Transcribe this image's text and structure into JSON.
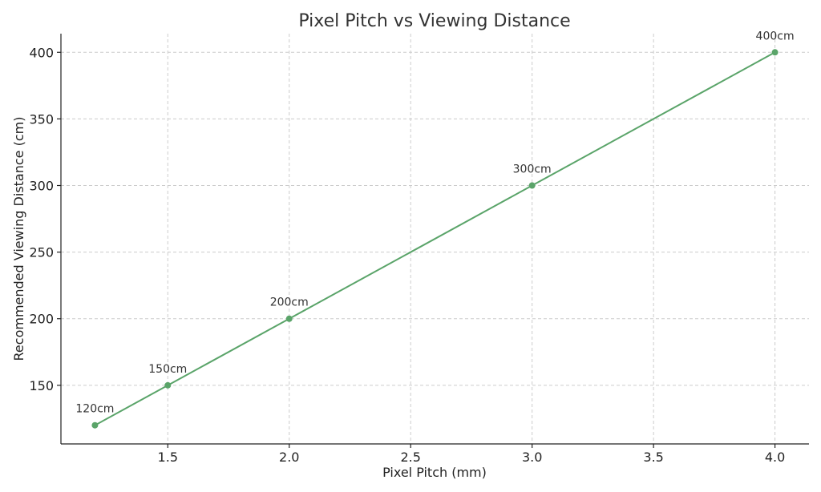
{
  "chart_data": {
    "type": "line",
    "title": "Pixel Pitch vs Viewing Distance",
    "xlabel": "Pixel Pitch (mm)",
    "ylabel": "Recommended Viewing Distance (cm)",
    "x": [
      1.2,
      1.5,
      2.0,
      3.0,
      4.0
    ],
    "series": [
      {
        "values": [
          120,
          150,
          200,
          300,
          400
        ],
        "color": "#5aa469",
        "data_labels": [
          "120cm",
          "150cm",
          "200cm",
          "300cm",
          "400cm"
        ]
      }
    ],
    "xlim": [
      1.06,
      4.14
    ],
    "ylim": [
      106,
      414
    ],
    "xticks": [
      1.5,
      2.0,
      2.5,
      3.0,
      3.5,
      4.0
    ],
    "xtick_labels": [
      "1.5",
      "2.0",
      "2.5",
      "3.0",
      "3.5",
      "4.0"
    ],
    "yticks": [
      150,
      200,
      250,
      300,
      350,
      400
    ],
    "ytick_labels": [
      "150",
      "200",
      "250",
      "300",
      "350",
      "400"
    ],
    "grid": true,
    "marker": "circle"
  }
}
